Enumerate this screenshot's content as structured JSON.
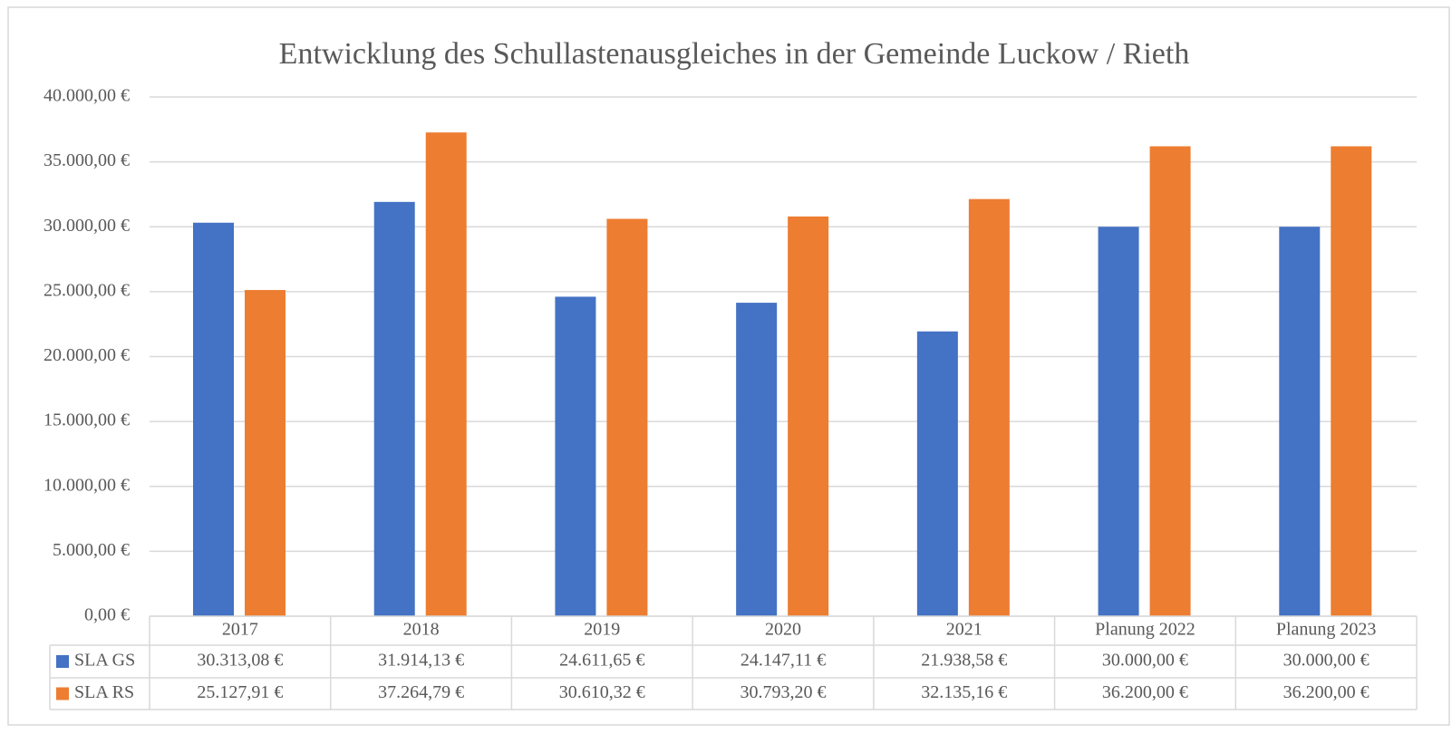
{
  "chart_data": {
    "type": "bar",
    "title": "Entwicklung des Schullastenausgleiches in der Gemeinde Luckow / Rieth",
    "categories": [
      "2017",
      "2018",
      "2019",
      "2020",
      "2021",
      "Planung 2022",
      "Planung 2023"
    ],
    "series": [
      {
        "name": "SLA GS",
        "color": "#4472c4",
        "values": [
          30313.08,
          31914.13,
          24611.65,
          24147.11,
          21938.58,
          30000.0,
          30000.0
        ],
        "value_labels": [
          "30.313,08 €",
          "31.914,13 €",
          "24.611,65 €",
          "24.147,11 €",
          "21.938,58 €",
          "30.000,00 €",
          "30.000,00 €"
        ]
      },
      {
        "name": "SLA RS",
        "color": "#ed7d31",
        "values": [
          25127.91,
          37264.79,
          30610.32,
          30793.2,
          32135.16,
          36200.0,
          36200.0
        ],
        "value_labels": [
          "25.127,91 €",
          "37.264,79 €",
          "30.610,32 €",
          "30.793,20 €",
          "32.135,16 €",
          "36.200,00 €",
          "36.200,00 €"
        ]
      }
    ],
    "ylim": [
      0,
      40000
    ],
    "yticks": [
      {
        "value": 0,
        "label": "0,00 €"
      },
      {
        "value": 5000,
        "label": "5.000,00 €"
      },
      {
        "value": 10000,
        "label": "10.000,00 €"
      },
      {
        "value": 15000,
        "label": "15.000,00 €"
      },
      {
        "value": 20000,
        "label": "20.000,00 €"
      },
      {
        "value": 25000,
        "label": "25.000,00 €"
      },
      {
        "value": 30000,
        "label": "30.000,00 €"
      },
      {
        "value": 35000,
        "label": "35.000,00 €"
      },
      {
        "value": 40000,
        "label": "40.000,00 €"
      }
    ],
    "grid": true
  }
}
